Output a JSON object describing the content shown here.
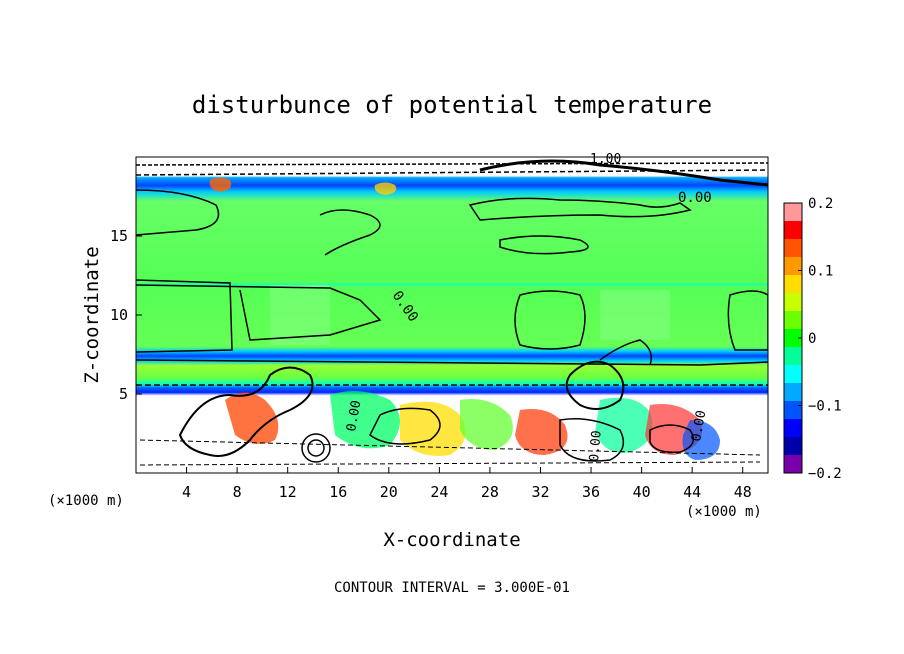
{
  "chart_data": {
    "type": "heatmap",
    "title": "disturbunce of potential temperature",
    "xlabel": "X-coordinate",
    "ylabel": "Z-coordinate",
    "x_unit": "(×1000 m)",
    "z_unit": "(×1000 m)",
    "xlim": [
      0,
      50
    ],
    "ylim": [
      0,
      20
    ],
    "x_ticks": [
      4,
      8,
      12,
      16,
      20,
      24,
      28,
      32,
      36,
      40,
      44,
      48
    ],
    "y_ticks": [
      5,
      10,
      15
    ],
    "colorbar": {
      "range": [
        -0.2,
        0.2
      ],
      "tick_values": [
        0.2,
        0.1,
        0,
        -0.1,
        -0.2
      ],
      "tick_labels": [
        "0.2",
        "0.1",
        "0",
        "−0.1",
        "−0.2"
      ],
      "colors": [
        "#ff9999",
        "#ff0000",
        "#ff5500",
        "#ff9900",
        "#ffdd00",
        "#c8ff00",
        "#6cff00",
        "#00ff00",
        "#00ff99",
        "#00ffff",
        "#00aaff",
        "#0055ff",
        "#0000ff",
        "#0000aa",
        "#7700aa"
      ]
    },
    "contour_labels": [
      "0.00",
      "0.00",
      "0.00",
      "0.00",
      "0.00",
      "1.00"
    ],
    "contour_interval_text": "CONTOUR INTERVAL = 3.000E-01",
    "bands": [
      {
        "z": [
          18.6,
          20
        ],
        "value": "mixed"
      },
      {
        "z": [
          17.6,
          18.6
        ],
        "value": -0.1
      },
      {
        "z": [
          12.0,
          17.6
        ],
        "value": 0.0
      },
      {
        "z": [
          11.9,
          12.0
        ],
        "value": -0.05
      },
      {
        "z": [
          7.6,
          11.9
        ],
        "value": 0.01
      },
      {
        "z": [
          7.0,
          7.6
        ],
        "value": -0.12
      },
      {
        "z": [
          5.4,
          7.0
        ],
        "value": 0.0
      },
      {
        "z": [
          5.0,
          5.4
        ],
        "value": -0.15
      },
      {
        "z": [
          0,
          5.0
        ],
        "value": "mixed"
      }
    ]
  }
}
